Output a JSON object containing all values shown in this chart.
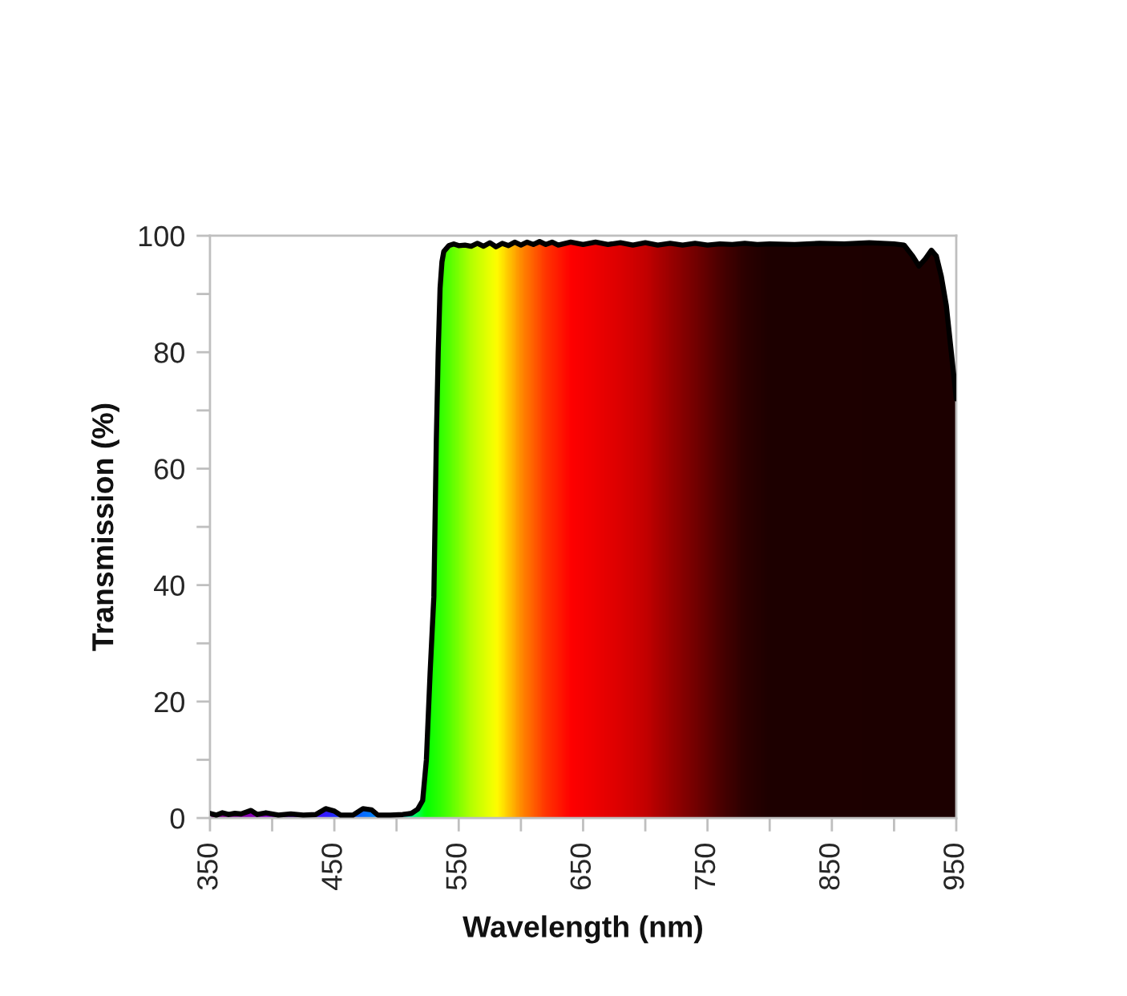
{
  "chart_data": {
    "type": "line",
    "xlabel": "Wavelength (nm)",
    "ylabel": "Transmission (%)",
    "xlim": [
      350,
      950
    ],
    "ylim": [
      0,
      100
    ],
    "xticks": [
      350,
      {
        "value": 400,
        "label": null
      },
      450,
      {
        "value": 500,
        "label": null
      },
      550,
      {
        "value": 600,
        "label": null
      },
      650,
      {
        "value": 700,
        "label": null
      },
      750,
      {
        "value": 800,
        "label": null
      },
      850,
      {
        "value": 900,
        "label": null
      },
      950
    ],
    "yticks": [
      0,
      {
        "value": 10,
        "label": null
      },
      20,
      {
        "value": 30,
        "label": null
      },
      40,
      {
        "value": 50,
        "label": null
      },
      60,
      {
        "value": 70,
        "label": null
      },
      80,
      {
        "value": 90,
        "label": null
      },
      100
    ],
    "series": [
      {
        "color": "#000000",
        "x": [
          350,
          355,
          360,
          365,
          370,
          375,
          383,
          388,
          395,
          405,
          415,
          425,
          435,
          443,
          450,
          455,
          465,
          473,
          480,
          485,
          495,
          505,
          512,
          517,
          521,
          524,
          527,
          530,
          532,
          533.5,
          535,
          536.5,
          538,
          542,
          546,
          550,
          555,
          560,
          565,
          570,
          575,
          580,
          585,
          590,
          595,
          600,
          605,
          610,
          615,
          620,
          625,
          630,
          640,
          650,
          660,
          670,
          680,
          690,
          700,
          710,
          720,
          730,
          740,
          750,
          760,
          770,
          780,
          790,
          800,
          820,
          840,
          860,
          880,
          900,
          908,
          915,
          920,
          925,
          930,
          934,
          938,
          942,
          946,
          950
        ],
        "values": [
          0.8,
          0.5,
          0.9,
          0.6,
          0.8,
          0.7,
          1.3,
          0.6,
          0.9,
          0.5,
          0.7,
          0.5,
          0.6,
          1.6,
          1.2,
          0.5,
          0.5,
          1.6,
          1.4,
          0.5,
          0.5,
          0.6,
          0.8,
          1.5,
          3,
          10,
          25,
          38,
          65,
          80,
          91,
          95.5,
          97.3,
          98.3,
          98.6,
          98.3,
          98.4,
          98.2,
          98.7,
          98.2,
          98.8,
          98.1,
          98.7,
          98.3,
          98.9,
          98.4,
          98.9,
          98.5,
          99.0,
          98.5,
          98.9,
          98.4,
          98.9,
          98.5,
          98.9,
          98.5,
          98.8,
          98.4,
          98.8,
          98.4,
          98.7,
          98.4,
          98.7,
          98.4,
          98.6,
          98.5,
          98.7,
          98.5,
          98.6,
          98.5,
          98.7,
          98.6,
          98.8,
          98.6,
          98.4,
          96.5,
          94.8,
          96,
          97.5,
          96.5,
          93,
          88,
          80,
          72
        ]
      }
    ]
  }
}
